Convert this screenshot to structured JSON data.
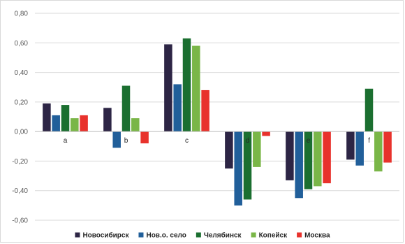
{
  "chart_data": {
    "type": "bar",
    "title": "",
    "xlabel": "",
    "ylabel": "",
    "categories": [
      "a",
      "b",
      "c",
      "d",
      "e",
      "f"
    ],
    "ylim": [
      -0.6,
      0.8
    ],
    "yticks": [
      0.8,
      0.6,
      0.4,
      0.2,
      0.0,
      -0.2,
      -0.4,
      -0.6
    ],
    "ytick_labels": [
      "0,80",
      "0,60",
      "0,40",
      "0,20",
      "0,00",
      "-0,20",
      "-0,40",
      "-0,60"
    ],
    "grid": true,
    "legend_position": "bottom",
    "series": [
      {
        "name": "Новосибирск",
        "color": "#2d2545",
        "values": [
          0.19,
          0.16,
          0.59,
          -0.25,
          -0.33,
          -0.19
        ]
      },
      {
        "name": "Нов.о. село",
        "color": "#215f9a",
        "values": [
          0.11,
          -0.11,
          0.32,
          -0.5,
          -0.45,
          -0.23
        ]
      },
      {
        "name": "Челябинск",
        "color": "#1b6f30",
        "values": [
          0.18,
          0.31,
          0.63,
          -0.46,
          -0.39,
          0.29
        ]
      },
      {
        "name": "Копейск",
        "color": "#7ab648",
        "values": [
          0.09,
          0.09,
          0.58,
          -0.24,
          -0.37,
          -0.27
        ]
      },
      {
        "name": "Москва",
        "color": "#e8322c",
        "values": [
          0.11,
          -0.08,
          0.28,
          -0.03,
          -0.35,
          -0.21
        ]
      }
    ]
  }
}
